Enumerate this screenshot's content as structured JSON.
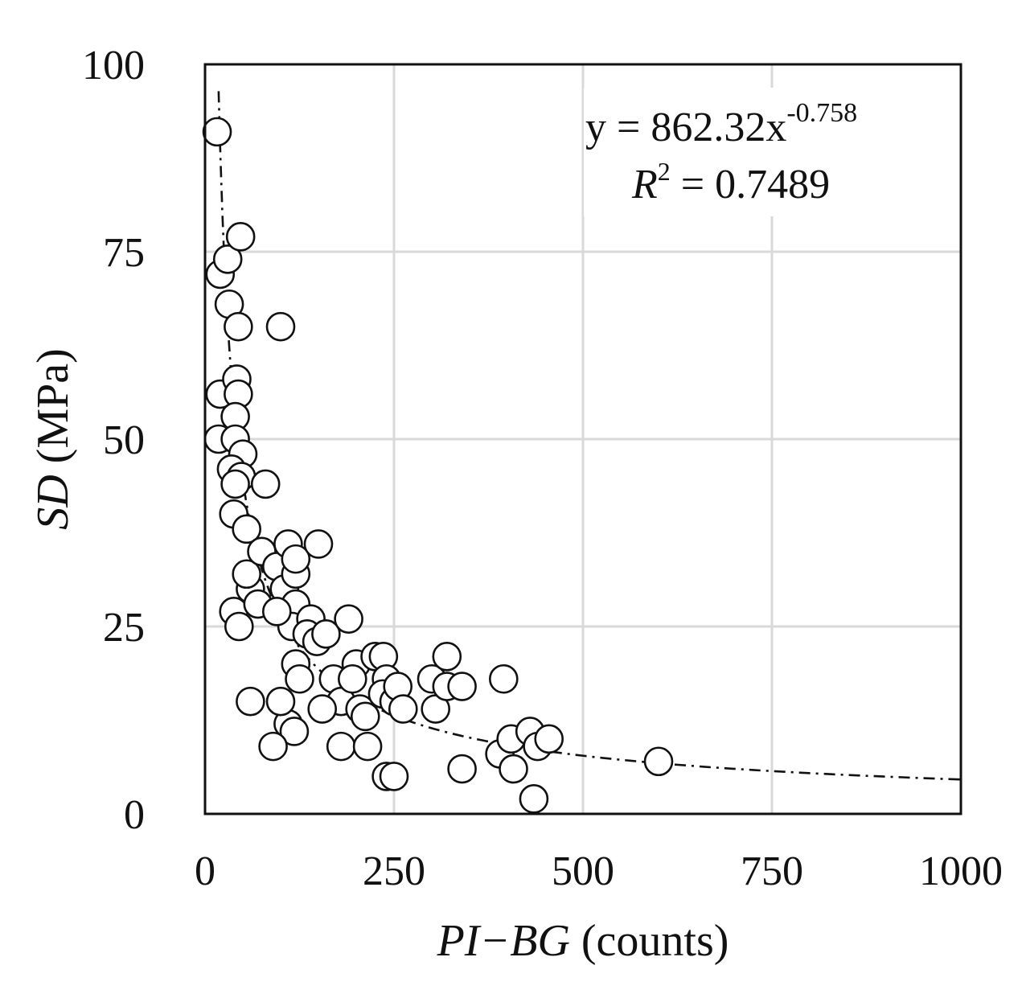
{
  "chart_data": {
    "type": "scatter",
    "xlabel_italic": "PI−BG",
    "xlabel_rest": " (counts)",
    "ylabel_italic": "SD",
    "ylabel_rest": " (MPa)",
    "xlim": [
      0,
      1000
    ],
    "ylim": [
      0,
      100
    ],
    "xticks": [
      0,
      250,
      500,
      750,
      1000
    ],
    "yticks": [
      0,
      25,
      50,
      75,
      100
    ],
    "xtick_labels": [
      "0",
      "250",
      "500",
      "750",
      "1000"
    ],
    "ytick_labels": [
      "0",
      "25",
      "50",
      "75",
      "100"
    ],
    "grid": true,
    "annotation": {
      "equation_base": "y = 862.32x",
      "equation_exponent": "-0.758",
      "r2_label": "R",
      "r2_sup": "2",
      "r2_value": " = 0.7489"
    },
    "fit": {
      "type": "power",
      "a": 862.32,
      "b": -0.758,
      "x_range": [
        18,
        1000
      ]
    },
    "points": [
      [
        16,
        91
      ],
      [
        20,
        56
      ],
      [
        18,
        50
      ],
      [
        20,
        72
      ],
      [
        30,
        74
      ],
      [
        32,
        68
      ],
      [
        47,
        77
      ],
      [
        44,
        65
      ],
      [
        42,
        58
      ],
      [
        44,
        56
      ],
      [
        40,
        53
      ],
      [
        40,
        50
      ],
      [
        50,
        48
      ],
      [
        35,
        46
      ],
      [
        48,
        45
      ],
      [
        40,
        44
      ],
      [
        38,
        40
      ],
      [
        55,
        38
      ],
      [
        38,
        27
      ],
      [
        45,
        25
      ],
      [
        60,
        30
      ],
      [
        55,
        32
      ],
      [
        75,
        35
      ],
      [
        70,
        28
      ],
      [
        80,
        44
      ],
      [
        100,
        65
      ],
      [
        95,
        33
      ],
      [
        110,
        36
      ],
      [
        105,
        30
      ],
      [
        120,
        32
      ],
      [
        120,
        34
      ],
      [
        120,
        28
      ],
      [
        115,
        25
      ],
      [
        150,
        36
      ],
      [
        140,
        26
      ],
      [
        135,
        24
      ],
      [
        148,
        23
      ],
      [
        120,
        20
      ],
      [
        125,
        18
      ],
      [
        110,
        12
      ],
      [
        118,
        11
      ],
      [
        100,
        15
      ],
      [
        95,
        27
      ],
      [
        60,
        15
      ],
      [
        90,
        9
      ],
      [
        160,
        24
      ],
      [
        170,
        18
      ],
      [
        180,
        15
      ],
      [
        155,
        14
      ],
      [
        190,
        26
      ],
      [
        200,
        20
      ],
      [
        195,
        18
      ],
      [
        205,
        14
      ],
      [
        212,
        13
      ],
      [
        225,
        21
      ],
      [
        236,
        21
      ],
      [
        240,
        18
      ],
      [
        235,
        16
      ],
      [
        250,
        15
      ],
      [
        255,
        17
      ],
      [
        262,
        14
      ],
      [
        300,
        18
      ],
      [
        305,
        14
      ],
      [
        320,
        17
      ],
      [
        320,
        21
      ],
      [
        340,
        17
      ],
      [
        180,
        9
      ],
      [
        215,
        9
      ],
      [
        240,
        5
      ],
      [
        250,
        5
      ],
      [
        340,
        6
      ],
      [
        390,
        8
      ],
      [
        395,
        18
      ],
      [
        405,
        10
      ],
      [
        408,
        6
      ],
      [
        430,
        11
      ],
      [
        440,
        9
      ],
      [
        455,
        10
      ],
      [
        435,
        2
      ],
      [
        600,
        7
      ]
    ]
  }
}
